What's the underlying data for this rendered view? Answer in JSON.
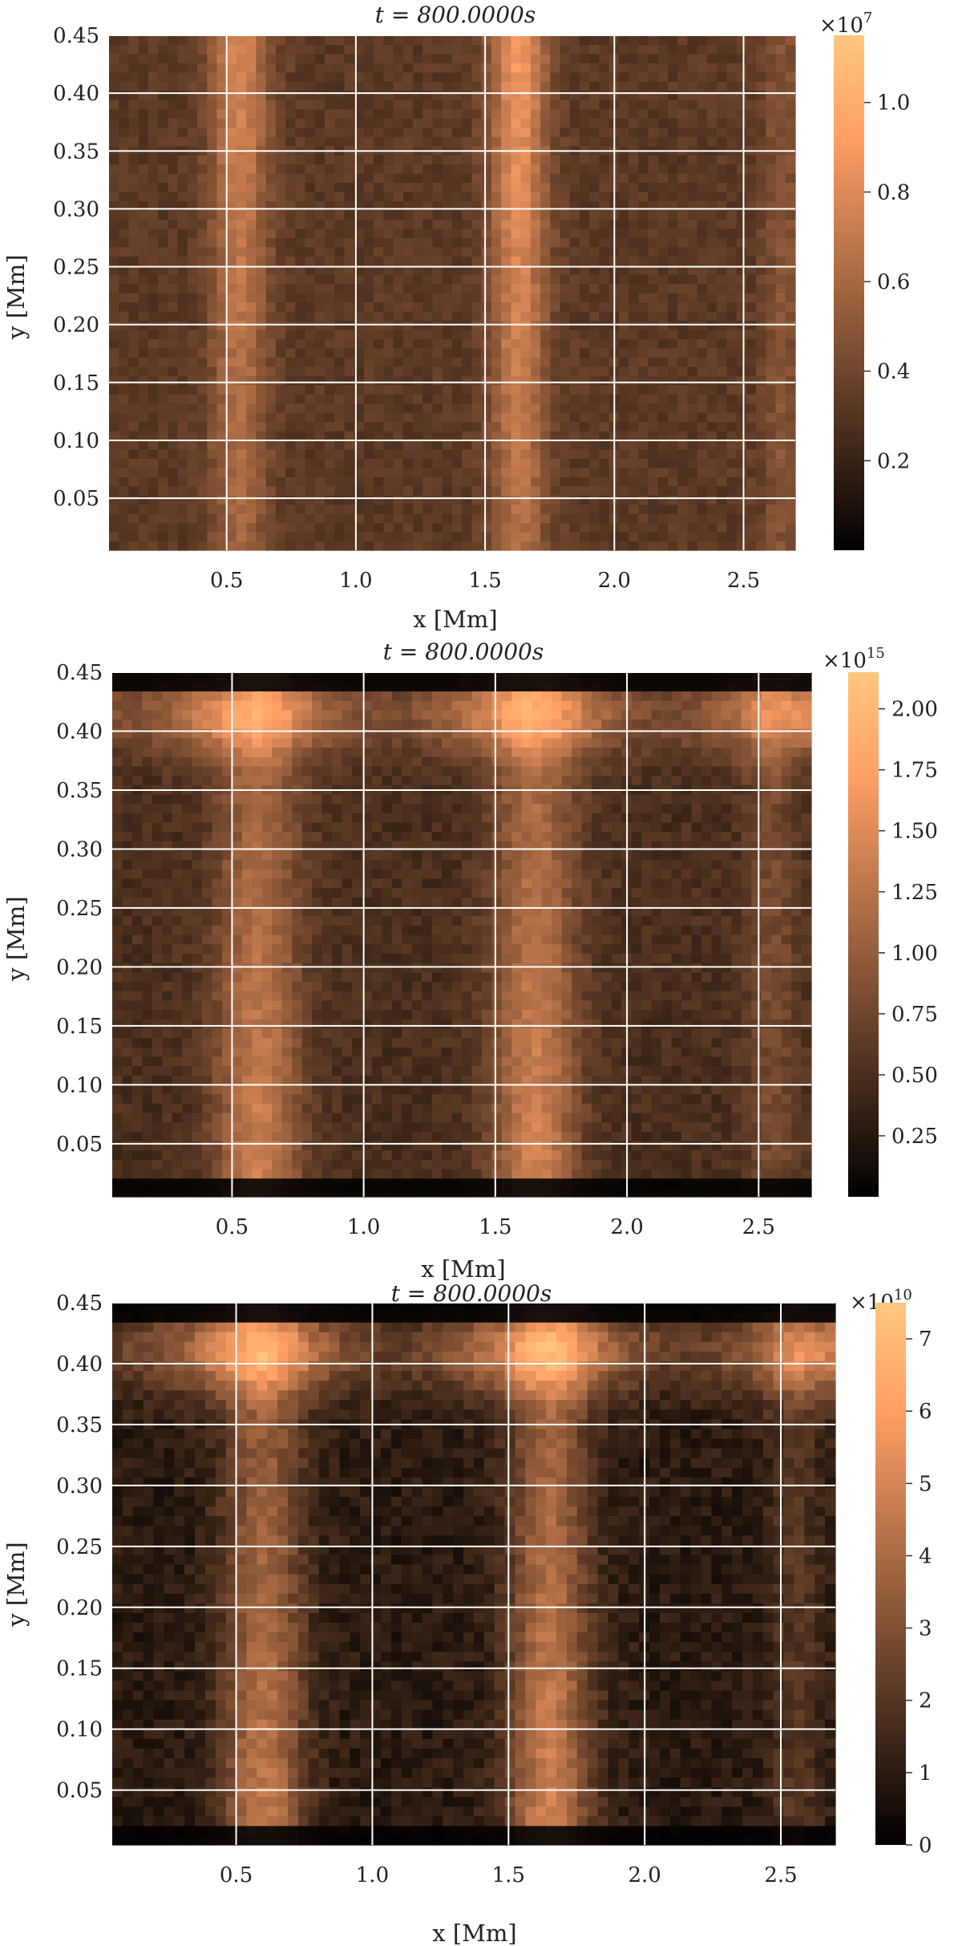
{
  "chart_data": [
    {
      "type": "heatmap",
      "title": "t = 800.0000s",
      "xlabel": "x [Mm]",
      "ylabel": "y [Mm]",
      "xlim": [
        0.045,
        2.7
      ],
      "ylim": [
        0.005,
        0.45
      ],
      "x_ticks": [
        0.5,
        1.0,
        1.5,
        2.0,
        2.5
      ],
      "x_tick_labels": [
        "0.5",
        "1.0",
        "1.5",
        "2.0",
        "2.5"
      ],
      "y_ticks": [
        0.05,
        0.1,
        0.15,
        0.2,
        0.25,
        0.3,
        0.35,
        0.4,
        0.45
      ],
      "y_tick_labels": [
        "0.05",
        "0.10",
        "0.15",
        "0.20",
        "0.25",
        "0.30",
        "0.35",
        "0.40",
        "0.45"
      ],
      "grid": true,
      "colormap": "copper",
      "colorbar": {
        "multiplier": "×10",
        "exponent": "7",
        "vmin": 0.0,
        "vmax": 1.15,
        "ticks": [
          0.2,
          0.4,
          0.6,
          0.8,
          1.0
        ],
        "tick_labels": [
          "0.2",
          "0.4",
          "0.6",
          "0.8",
          "1.0"
        ]
      },
      "field": {
        "background": 0.33,
        "streaks": [
          {
            "x": 0.55,
            "width": 0.11,
            "amplitude": 0.45,
            "profile": "top"
          },
          {
            "x": 1.63,
            "width": 0.11,
            "amplitude": 0.55,
            "profile": "top"
          },
          {
            "x": 2.65,
            "width": 0.08,
            "amplitude": 0.15,
            "profile": "flat"
          }
        ],
        "noise": 0.06
      }
    },
    {
      "type": "heatmap",
      "title": "t = 800.0000s",
      "xlabel": "x [Mm]",
      "ylabel": "y [Mm]",
      "xlim": [
        0.045,
        2.7
      ],
      "ylim": [
        0.005,
        0.45
      ],
      "x_ticks": [
        0.5,
        1.0,
        1.5,
        2.0,
        2.5
      ],
      "x_tick_labels": [
        "0.5",
        "1.0",
        "1.5",
        "2.0",
        "2.5"
      ],
      "y_ticks": [
        0.05,
        0.1,
        0.15,
        0.2,
        0.25,
        0.3,
        0.35,
        0.4,
        0.45
      ],
      "y_tick_labels": [
        "0.05",
        "0.10",
        "0.15",
        "0.20",
        "0.25",
        "0.30",
        "0.35",
        "0.40",
        "0.45"
      ],
      "grid": true,
      "colormap": "copper",
      "colorbar": {
        "multiplier": "×10",
        "exponent": "15",
        "vmin": 0.0,
        "vmax": 2.15,
        "ticks": [
          0.25,
          0.5,
          0.75,
          1.0,
          1.25,
          1.5,
          1.75,
          2.0
        ],
        "tick_labels": [
          "0.25",
          "0.50",
          "0.75",
          "1.00",
          "1.25",
          "1.50",
          "1.75",
          "2.00"
        ]
      },
      "field": {
        "background": 0.5,
        "streaks": [
          {
            "x": 0.6,
            "width": 0.16,
            "amplitude": 0.9,
            "profile": "bottom"
          },
          {
            "x": 1.65,
            "width": 0.16,
            "amplitude": 0.95,
            "profile": "bottom"
          },
          {
            "x": 2.55,
            "width": 0.1,
            "amplitude": 0.3,
            "profile": "flat"
          }
        ],
        "top_band": {
          "y": 0.415,
          "height": 0.035,
          "amplitude": 0.9
        },
        "dark_edges": true,
        "noise": 0.12
      }
    },
    {
      "type": "heatmap",
      "title": "t = 800.0000s",
      "xlabel": "x [Mm]",
      "ylabel": "y [Mm]",
      "xlim": [
        0.045,
        2.7
      ],
      "ylim": [
        0.005,
        0.45
      ],
      "x_ticks": [
        0.5,
        1.0,
        1.5,
        2.0,
        2.5
      ],
      "x_tick_labels": [
        "0.5",
        "1.0",
        "1.5",
        "2.0",
        "2.5"
      ],
      "y_ticks": [
        0.05,
        0.1,
        0.15,
        0.2,
        0.25,
        0.3,
        0.35,
        0.4,
        0.45
      ],
      "y_tick_labels": [
        "0.05",
        "0.10",
        "0.15",
        "0.20",
        "0.25",
        "0.30",
        "0.35",
        "0.40",
        "0.45"
      ],
      "grid": true,
      "colormap": "copper",
      "colorbar": {
        "multiplier": "×10",
        "exponent": "10",
        "vmin": 0.0,
        "vmax": 7.5,
        "ticks": [
          0,
          1,
          2,
          3,
          4,
          5,
          6,
          7
        ],
        "tick_labels": [
          "0",
          "1",
          "2",
          "3",
          "4",
          "5",
          "6",
          "7"
        ]
      },
      "field": {
        "background": 1.0,
        "streaks": [
          {
            "x": 0.6,
            "width": 0.15,
            "amplitude": 3.6,
            "profile": "bottom"
          },
          {
            "x": 1.65,
            "width": 0.15,
            "amplitude": 4.0,
            "profile": "bottom"
          },
          {
            "x": 2.55,
            "width": 0.1,
            "amplitude": 1.0,
            "profile": "flat"
          }
        ],
        "top_band": {
          "y": 0.41,
          "height": 0.035,
          "amplitude": 3.8
        },
        "dark_edges": true,
        "noise": 0.5
      }
    }
  ]
}
